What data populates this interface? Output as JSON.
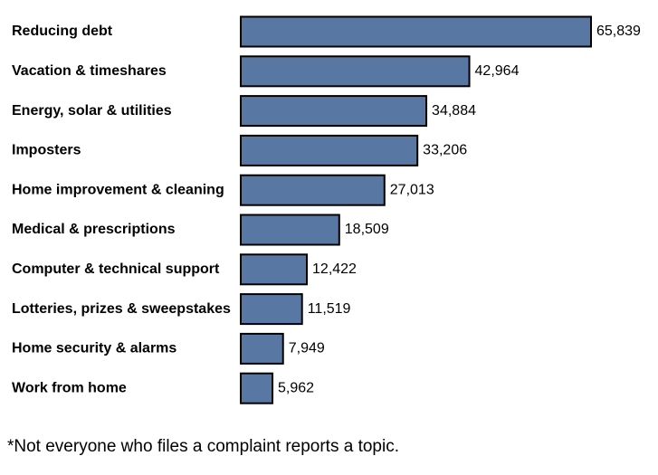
{
  "colors": {
    "bar_fill": "#5878a3",
    "bar_stroke": "#000000",
    "text": "#000000",
    "background": "#ffffff"
  },
  "chart_data": {
    "type": "bar",
    "orientation": "horizontal",
    "categories": [
      "Reducing debt",
      "Vacation & timeshares",
      "Energy, solar & utilities",
      "Imposters",
      "Home improvement & cleaning",
      "Medical & prescriptions",
      "Computer & technical support",
      "Lotteries, prizes & sweepstakes",
      "Home security & alarms",
      "Work from home"
    ],
    "values": [
      65839,
      42964,
      34884,
      33206,
      27013,
      18509,
      12422,
      11519,
      7949,
      5962
    ],
    "value_labels": [
      "65,839",
      "42,964",
      "34,884",
      "33,206",
      "27,013",
      "18,509",
      "12,422",
      "11,519",
      "7,949",
      "5,962"
    ],
    "xlim": [
      0,
      65839
    ],
    "grid": false,
    "legend": "none"
  },
  "footnote": "*Not everyone who files a complaint reports a topic."
}
